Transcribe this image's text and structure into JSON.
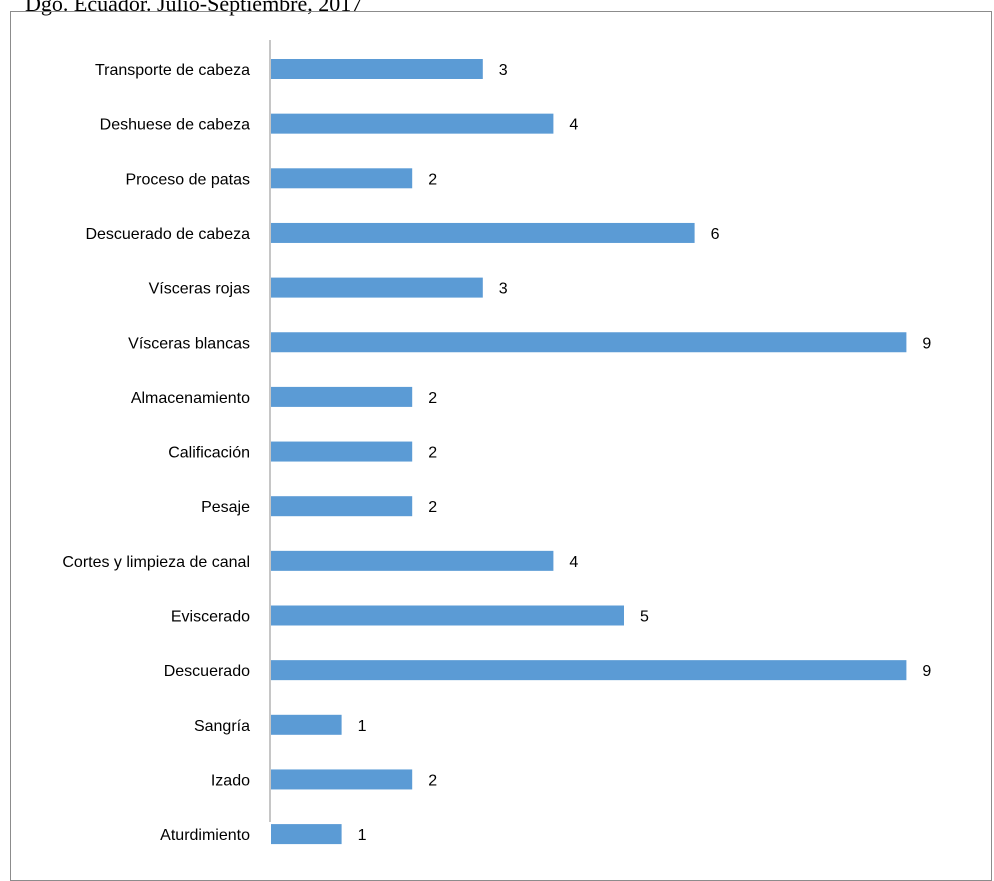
{
  "caption": "Dgo. Ecuador. Julio-Septiembre, 2017",
  "chart_data": {
    "type": "bar",
    "orientation": "horizontal",
    "categories": [
      "Transporte de cabeza",
      "Deshuese de cabeza",
      "Proceso de patas",
      "Descuerado de cabeza",
      "Vísceras rojas",
      "Vísceras blancas",
      "Almacenamiento",
      "Calificación",
      "Pesaje",
      "Cortes y limpieza de canal",
      "Eviscerado",
      "Descuerado",
      "Sangría",
      "Izado",
      "Aturdimiento"
    ],
    "values": [
      3,
      4,
      2,
      6,
      3,
      9,
      2,
      2,
      2,
      4,
      5,
      9,
      1,
      2,
      1
    ],
    "xlim": [
      0,
      9
    ],
    "data_labels": true,
    "grid": false,
    "bar_color": "#5b9bd5",
    "axis_color": "#8c8c8c"
  }
}
